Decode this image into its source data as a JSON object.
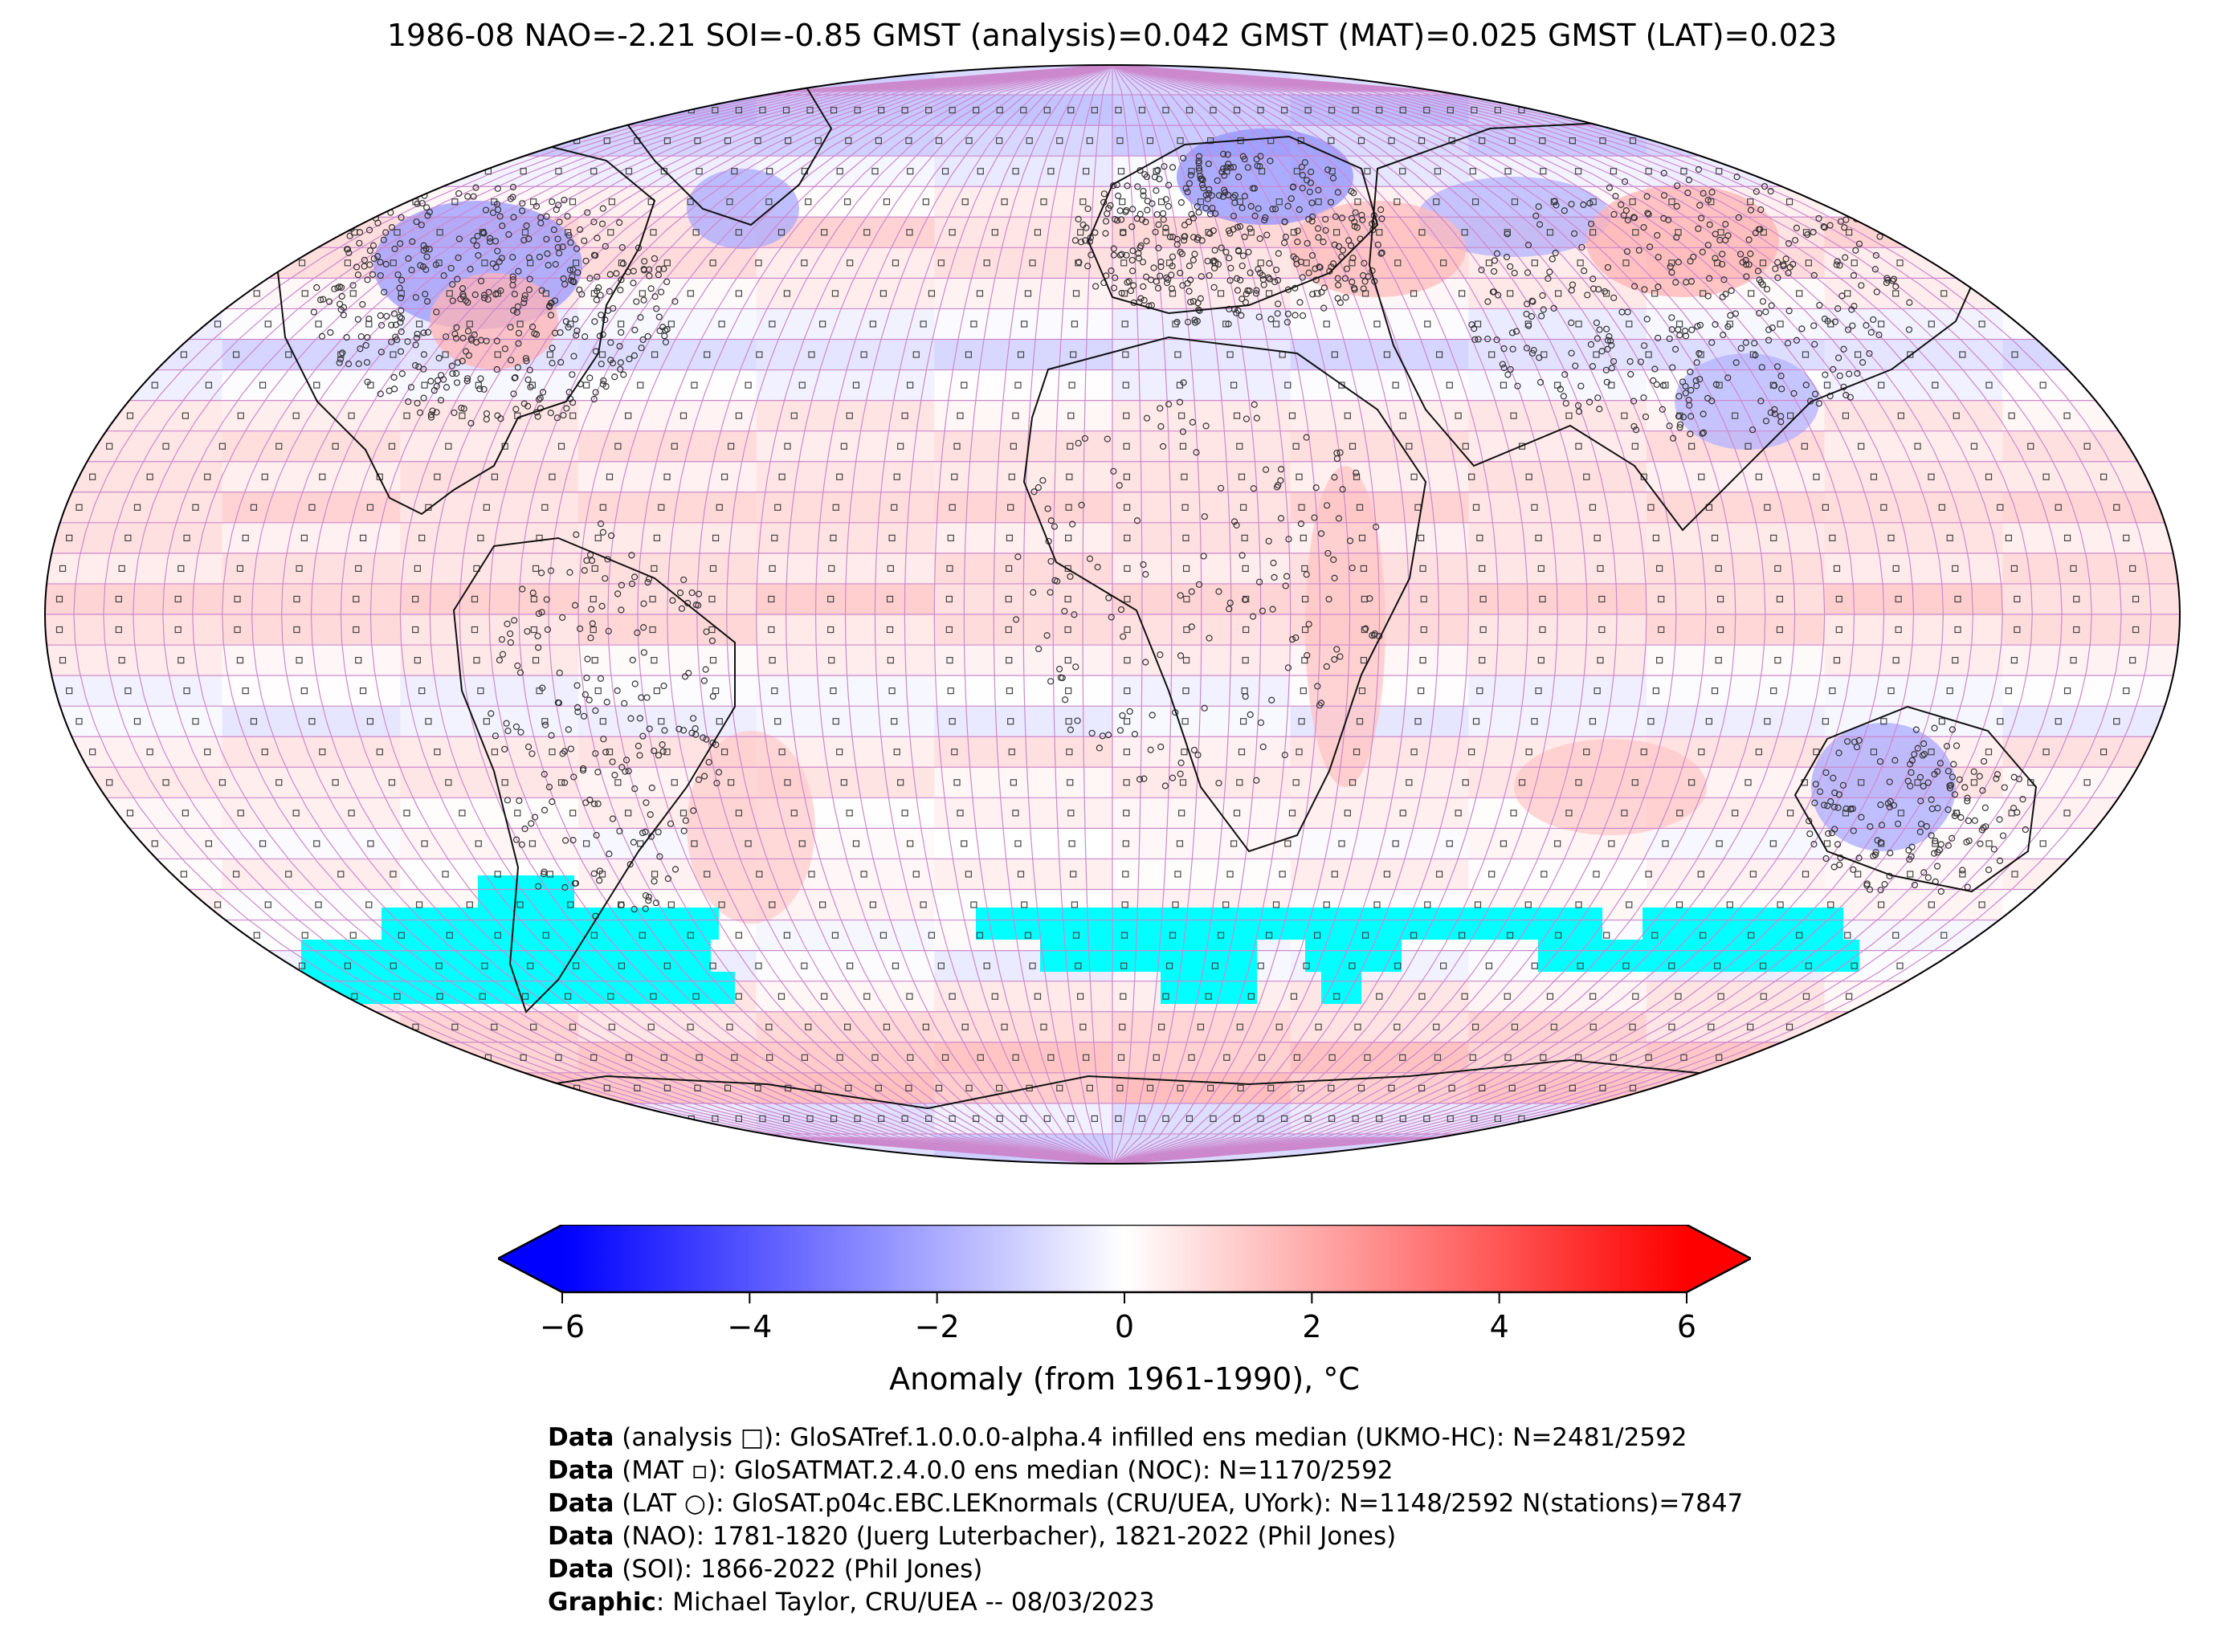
{
  "title": "1986-08 NAO=-2.21 SOI=-0.85 GMST (analysis)=0.042 GMST (MAT)=0.025 GMST (LAT)=0.023",
  "colorbar": {
    "label": "Anomaly (from 1961-1990), °C",
    "ticks": [
      "−6",
      "−4",
      "−2",
      "0",
      "2",
      "4",
      "6"
    ],
    "tick_values": [
      -6,
      -4,
      -2,
      0,
      2,
      4,
      6
    ],
    "range": [
      -6,
      6
    ],
    "extend": "both",
    "colors": {
      "min": "#0000ff",
      "mid": "#ffffff",
      "max": "#ff0000"
    }
  },
  "map": {
    "projection": "Robinson",
    "grid_color": "#cc88cc",
    "missing_color": "#00ffff",
    "station_marker": "circle",
    "analysis_marker": "square"
  },
  "footer": [
    {
      "bold": "Data",
      "rest": " (analysis □): GloSATref.1.0.0.0-alpha.4 infilled ens median (UKMO-HC): N=2481/2592"
    },
    {
      "bold": "Data",
      "rest": " (MAT ▫): GloSATMAT.2.4.0.0 ens median (NOC): N=1170/2592"
    },
    {
      "bold": "Data",
      "rest": " (LAT ○): GloSAT.p04c.EBC.LEKnormals (CRU/UEA, UYork): N=1148/2592 N(stations)=7847"
    },
    {
      "bold": "Data",
      "rest": " (NAO): 1781-1820 (Juerg Luterbacher), 1821-2022 (Phil Jones)"
    },
    {
      "bold": "Data",
      "rest": " (SOI): 1866-2022 (Phil Jones)"
    },
    {
      "bold": "Graphic",
      "rest": ": Michael Taylor, CRU/UEA -- 08/03/2023"
    }
  ]
}
